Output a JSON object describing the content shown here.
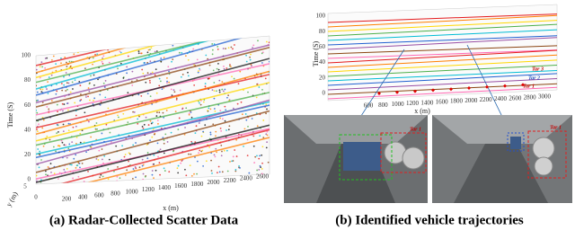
{
  "panels": [
    {
      "caption": "(a) Radar-Collected Scatter Data",
      "time_label": "Time (S)",
      "time_ticks": [
        "0",
        "20",
        "40",
        "60",
        "80",
        "100"
      ],
      "x_label": "x (m)",
      "x_ticks": [
        "200",
        "400",
        "600",
        "800",
        "1000",
        "1200",
        "1400",
        "1600",
        "1800",
        "2000",
        "2200",
        "2400",
        "2600"
      ],
      "y_label": "y (m)",
      "y_ticks": [
        "5",
        "0"
      ]
    },
    {
      "caption": "(b) Identified vehicle trajectories",
      "time_label": "Time (S)",
      "time_ticks": [
        "0",
        "20",
        "40",
        "60",
        "80",
        "100"
      ],
      "x_label": "x (m)",
      "x_ticks": [
        "600",
        "800",
        "1000",
        "1200",
        "1400",
        "1600",
        "1800",
        "2000",
        "2200",
        "2400",
        "2600",
        "2800",
        "3000"
      ],
      "targets": [
        "Tar 3",
        "Tar 2",
        "Tar 1"
      ],
      "cameras": [
        {
          "target": "Tar 1"
        },
        {
          "target": "Tar 1"
        }
      ]
    }
  ]
}
